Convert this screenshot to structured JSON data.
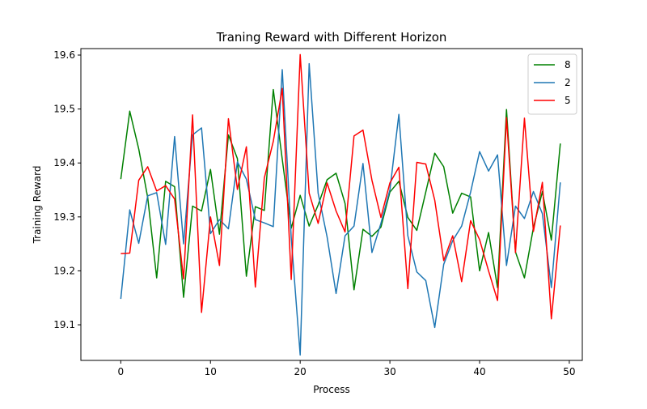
{
  "chart_data": {
    "type": "line",
    "title": "Traning Reward with Different Horizon",
    "xlabel": "Process",
    "ylabel": "Training Reward",
    "xlim": [
      -4.45,
      51.45
    ],
    "ylim": [
      19.034,
      19.612
    ],
    "xticks": [
      0,
      10,
      20,
      30,
      40,
      50
    ],
    "yticks": [
      19.1,
      19.2,
      19.3,
      19.4,
      19.5,
      19.6
    ],
    "xtick_labels": [
      "0",
      "10",
      "20",
      "30",
      "40",
      "50"
    ],
    "ytick_labels": [
      "19.1",
      "19.2",
      "19.3",
      "19.4",
      "19.5",
      "19.6"
    ],
    "grid": false,
    "legend_position": "top-right",
    "x": [
      0,
      1,
      2,
      3,
      4,
      5,
      6,
      7,
      8,
      9,
      10,
      11,
      12,
      13,
      14,
      15,
      16,
      17,
      18,
      19,
      20,
      21,
      22,
      23,
      24,
      25,
      26,
      27,
      28,
      29,
      30,
      31,
      32,
      33,
      34,
      35,
      36,
      37,
      38,
      39,
      40,
      41,
      42,
      43,
      44,
      45,
      46,
      47,
      48,
      49
    ],
    "series": [
      {
        "name": "8",
        "color": "#008000",
        "values": [
          19.37,
          19.496,
          19.426,
          19.336,
          19.187,
          19.366,
          19.356,
          19.151,
          19.32,
          19.311,
          19.388,
          19.268,
          19.452,
          19.408,
          19.19,
          19.319,
          19.312,
          19.536,
          19.407,
          19.279,
          19.34,
          19.283,
          19.322,
          19.369,
          19.381,
          19.325,
          19.165,
          19.277,
          19.264,
          19.281,
          19.346,
          19.366,
          19.299,
          19.275,
          19.346,
          19.418,
          19.393,
          19.307,
          19.344,
          19.337,
          19.2,
          19.271,
          19.169,
          19.499,
          19.235,
          19.187,
          19.28,
          19.347,
          19.257,
          19.436
        ]
      },
      {
        "name": "2",
        "color": "#1f77b4",
        "values": [
          19.148,
          19.313,
          19.251,
          19.339,
          19.345,
          19.249,
          19.449,
          19.25,
          19.452,
          19.465,
          19.269,
          19.295,
          19.278,
          19.402,
          19.37,
          19.295,
          19.289,
          19.282,
          19.573,
          19.262,
          19.044,
          19.584,
          19.344,
          19.263,
          19.158,
          19.265,
          19.283,
          19.399,
          19.234,
          19.288,
          19.35,
          19.49,
          19.265,
          19.198,
          19.182,
          19.095,
          19.212,
          19.256,
          19.283,
          19.346,
          19.421,
          19.385,
          19.415,
          19.21,
          19.32,
          19.297,
          19.347,
          19.306,
          19.169,
          19.364
        ]
      },
      {
        "name": "5",
        "color": "#ff0000",
        "values": [
          19.232,
          19.233,
          19.368,
          19.393,
          19.348,
          19.358,
          19.333,
          19.185,
          19.489,
          19.123,
          19.3,
          19.21,
          19.482,
          19.351,
          19.43,
          19.17,
          19.372,
          19.44,
          19.538,
          19.184,
          19.601,
          19.344,
          19.288,
          19.363,
          19.311,
          19.272,
          19.45,
          19.461,
          19.368,
          19.299,
          19.363,
          19.392,
          19.167,
          19.401,
          19.398,
          19.331,
          19.219,
          19.265,
          19.18,
          19.293,
          19.258,
          19.2,
          19.145,
          19.484,
          19.234,
          19.483,
          19.273,
          19.364,
          19.111,
          19.284
        ]
      }
    ]
  }
}
